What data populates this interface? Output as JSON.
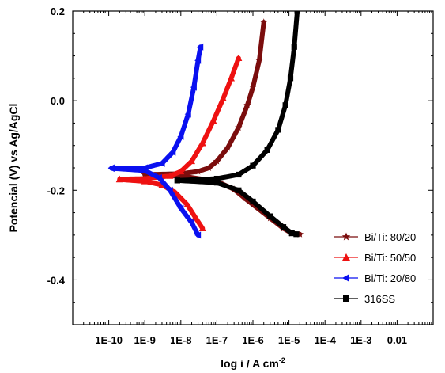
{
  "chart_data": {
    "type": "scatter",
    "xlabel": "log i / A cm",
    "xlabel_sup": "-2",
    "ylabel": "Potencial (V) vs Ag/AgCl",
    "xscale": "log",
    "xlim": [
      1e-11,
      0.1
    ],
    "ylim": [
      -0.5,
      0.2
    ],
    "x_tick_labels": [
      "1E-10",
      "1E-9",
      "1E-8",
      "1E-7",
      "1E-6",
      "1E-5",
      "1E-4",
      "1E-3",
      "0.01"
    ],
    "x_tick_values": [
      1e-10,
      1e-09,
      1e-08,
      1e-07,
      1e-06,
      1e-05,
      0.0001,
      0.001,
      0.01
    ],
    "y_tick_labels": [
      "0.2",
      "0.0",
      "-0.2",
      "-0.4"
    ],
    "y_tick_values": [
      0.2,
      0.0,
      -0.2,
      -0.4
    ],
    "legend_position": "bottom-right",
    "series": [
      {
        "name": "Bi/Ti: 80/20",
        "color": "#7b0d0d",
        "marker": "star",
        "corrosion_potential": -0.162,
        "anodic": [
          [
            1e-09,
            -0.165
          ],
          [
            1e-08,
            -0.163
          ],
          [
            3e-08,
            -0.158
          ],
          [
            6e-08,
            -0.15
          ],
          [
            1e-07,
            -0.135
          ],
          [
            2e-07,
            -0.105
          ],
          [
            4e-07,
            -0.06
          ],
          [
            7e-07,
            -0.01
          ],
          [
            1e-06,
            0.03
          ],
          [
            1.5e-06,
            0.09
          ],
          [
            2e-06,
            0.175
          ]
        ],
        "cathodic": [
          [
            1e-09,
            -0.165
          ],
          [
            1e-08,
            -0.168
          ],
          [
            1e-07,
            -0.18
          ],
          [
            3e-07,
            -0.198
          ],
          [
            6e-07,
            -0.218
          ],
          [
            1e-06,
            -0.232
          ],
          [
            3e-06,
            -0.262
          ],
          [
            7e-06,
            -0.285
          ],
          [
            1.2e-05,
            -0.296
          ],
          [
            2e-05,
            -0.298
          ]
        ]
      },
      {
        "name": "Bi/Ti: 50/50",
        "color": "#ee1111",
        "marker": "triangle-up",
        "corrosion_potential": -0.175,
        "anodic": [
          [
            2e-10,
            -0.175
          ],
          [
            1e-09,
            -0.174
          ],
          [
            5e-09,
            -0.168
          ],
          [
            1e-08,
            -0.158
          ],
          [
            2e-08,
            -0.135
          ],
          [
            4e-08,
            -0.095
          ],
          [
            8e-08,
            -0.045
          ],
          [
            1.5e-07,
            0.005
          ],
          [
            2.5e-07,
            0.05
          ],
          [
            4e-07,
            0.095
          ]
        ],
        "cathodic": [
          [
            2e-10,
            -0.176
          ],
          [
            1e-09,
            -0.18
          ],
          [
            3e-09,
            -0.188
          ],
          [
            7e-09,
            -0.205
          ],
          [
            1.5e-08,
            -0.232
          ],
          [
            2.5e-08,
            -0.26
          ],
          [
            4e-08,
            -0.285
          ]
        ]
      },
      {
        "name": "Bi/Ti: 20/80",
        "color": "#0a10f0",
        "marker": "triangle-left",
        "corrosion_potential": -0.15,
        "anodic": [
          [
            1.2e-10,
            -0.15
          ],
          [
            1e-09,
            -0.15
          ],
          [
            3e-09,
            -0.14
          ],
          [
            6e-09,
            -0.115
          ],
          [
            1e-08,
            -0.08
          ],
          [
            1.6e-08,
            -0.03
          ],
          [
            2.3e-08,
            0.03
          ],
          [
            3e-08,
            0.09
          ],
          [
            3.5e-08,
            0.12
          ]
        ],
        "cathodic": [
          [
            1.2e-10,
            -0.151
          ],
          [
            1e-09,
            -0.156
          ],
          [
            2.5e-09,
            -0.172
          ],
          [
            5e-09,
            -0.2
          ],
          [
            1e-08,
            -0.24
          ],
          [
            2e-08,
            -0.272
          ],
          [
            3e-08,
            -0.3
          ]
        ]
      },
      {
        "name": "316SS",
        "color": "#000000",
        "marker": "square",
        "corrosion_potential": -0.178,
        "anodic": [
          [
            8e-09,
            -0.178
          ],
          [
            1e-07,
            -0.174
          ],
          [
            4e-07,
            -0.165
          ],
          [
            1e-06,
            -0.145
          ],
          [
            2.5e-06,
            -0.11
          ],
          [
            5e-06,
            -0.065
          ],
          [
            8e-06,
            -0.01
          ],
          [
            1.1e-05,
            0.05
          ],
          [
            1.4e-05,
            0.12
          ],
          [
            1.7e-05,
            0.2
          ]
        ],
        "cathodic": [
          [
            8e-09,
            -0.178
          ],
          [
            1e-07,
            -0.183
          ],
          [
            4e-07,
            -0.2
          ],
          [
            1e-06,
            -0.225
          ],
          [
            3e-06,
            -0.258
          ],
          [
            7e-06,
            -0.282
          ],
          [
            1.2e-05,
            -0.296
          ],
          [
            1.6e-05,
            -0.298
          ]
        ]
      }
    ]
  }
}
